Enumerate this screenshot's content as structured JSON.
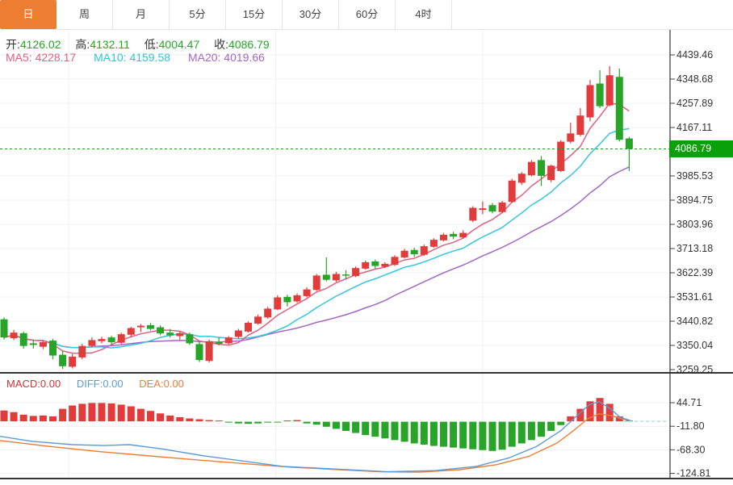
{
  "tabs": [
    {
      "label": "日",
      "active": true
    },
    {
      "label": "周",
      "active": false
    },
    {
      "label": "月",
      "active": false
    },
    {
      "label": "5分",
      "active": false
    },
    {
      "label": "15分",
      "active": false
    },
    {
      "label": "30分",
      "active": false
    },
    {
      "label": "60分",
      "active": false
    },
    {
      "label": "4时",
      "active": false
    }
  ],
  "legend": {
    "open_label": "开:",
    "open": "4126.02",
    "high_label": "高:",
    "high": "4132.11",
    "low_label": "低:",
    "low": "4004.47",
    "close_label": "收:",
    "close": "4086.79",
    "ma5_label": "MA5:",
    "ma5": "4228.17",
    "ma10_label": "MA10:",
    "ma10": "4159.58",
    "ma20_label": "MA20:",
    "ma20": "4019.66"
  },
  "macd_legend": {
    "macd_label": "MACD:",
    "macd": "0.00",
    "diff_label": "DIFF:",
    "diff": "0.00",
    "dea_label": "DEA:",
    "dea": "0.00"
  },
  "colors": {
    "active_tab": "#ed7d31",
    "up_candle": "#e23b3b",
    "down_candle": "#28a428",
    "price_badge": "#0aa00a",
    "current_price_line": "#15a015",
    "ma5": "#e0607e",
    "ma10": "#33c6dc",
    "ma20": "#a466c4",
    "diff_line": "#5b9bd5",
    "dea_line": "#ed7d31",
    "ohlc_value": "#21a821"
  },
  "chart_data": {
    "type": "candlestick+macd",
    "main": {
      "type": "candlestick",
      "title": "Daily K-line",
      "y_ticks": [
        "4439.46",
        "4348.68",
        "4257.89",
        "4167.11",
        "3985.53",
        "3894.75",
        "3803.96",
        "3713.18",
        "3622.39",
        "3531.61",
        "3440.82",
        "3350.04",
        "3259.25"
      ],
      "ylim": [
        3259.25,
        4439.46
      ],
      "current_price": 4086.79,
      "current_price_label": "4086.79",
      "ma_periods": [
        5,
        10,
        20
      ],
      "candles": [
        [
          3448,
          3455,
          3372,
          3380
        ],
        [
          3377,
          3408,
          3370,
          3398
        ],
        [
          3396,
          3402,
          3338,
          3348
        ],
        [
          3358,
          3372,
          3338,
          3352
        ],
        [
          3345,
          3370,
          3336,
          3362
        ],
        [
          3368,
          3375,
          3298,
          3312
        ],
        [
          3315,
          3330,
          3262,
          3272
        ],
        [
          3270,
          3318,
          3264,
          3308
        ],
        [
          3305,
          3356,
          3298,
          3348
        ],
        [
          3348,
          3380,
          3342,
          3370
        ],
        [
          3366,
          3382,
          3358,
          3374
        ],
        [
          3380,
          3386,
          3352,
          3362
        ],
        [
          3360,
          3398,
          3355,
          3392
        ],
        [
          3390,
          3420,
          3382,
          3415
        ],
        [
          3418,
          3430,
          3400,
          3424
        ],
        [
          3426,
          3434,
          3406,
          3412
        ],
        [
          3418,
          3425,
          3388,
          3395
        ],
        [
          3398,
          3412,
          3380,
          3388
        ],
        [
          3385,
          3402,
          3372,
          3396
        ],
        [
          3392,
          3398,
          3352,
          3358
        ],
        [
          3355,
          3365,
          3288,
          3295
        ],
        [
          3292,
          3372,
          3286,
          3366
        ],
        [
          3363,
          3380,
          3350,
          3356
        ],
        [
          3358,
          3385,
          3352,
          3380
        ],
        [
          3382,
          3412,
          3376,
          3406
        ],
        [
          3402,
          3440,
          3398,
          3435
        ],
        [
          3432,
          3466,
          3428,
          3458
        ],
        [
          3455,
          3495,
          3450,
          3488
        ],
        [
          3485,
          3538,
          3482,
          3530
        ],
        [
          3532,
          3540,
          3496,
          3512
        ],
        [
          3515,
          3545,
          3510,
          3538
        ],
        [
          3535,
          3568,
          3530,
          3560
        ],
        [
          3558,
          3618,
          3554,
          3612
        ],
        [
          3615,
          3680,
          3590,
          3596
        ],
        [
          3594,
          3626,
          3588,
          3618
        ],
        [
          3616,
          3632,
          3600,
          3612
        ],
        [
          3610,
          3646,
          3606,
          3640
        ],
        [
          3638,
          3668,
          3634,
          3662
        ],
        [
          3665,
          3672,
          3638,
          3648
        ],
        [
          3645,
          3662,
          3640,
          3656
        ],
        [
          3652,
          3688,
          3648,
          3682
        ],
        [
          3680,
          3712,
          3676,
          3705
        ],
        [
          3708,
          3716,
          3682,
          3692
        ],
        [
          3690,
          3728,
          3686,
          3722
        ],
        [
          3720,
          3752,
          3716,
          3746
        ],
        [
          3744,
          3772,
          3740,
          3765
        ],
        [
          3768,
          3776,
          3748,
          3758
        ],
        [
          3755,
          3782,
          3750,
          3772
        ],
        [
          3818,
          3872,
          3812,
          3866
        ],
        [
          3858,
          3890,
          3842,
          3864
        ],
        [
          3876,
          3884,
          3845,
          3852
        ],
        [
          3850,
          3892,
          3846,
          3886
        ],
        [
          3888,
          3975,
          3884,
          3968
        ],
        [
          3960,
          4000,
          3952,
          3994
        ],
        [
          3988,
          4045,
          3984,
          4038
        ],
        [
          4045,
          4060,
          3948,
          3986
        ],
        [
          3970,
          4028,
          3962,
          4024
        ],
        [
          4004,
          4120,
          4000,
          4114
        ],
        [
          4114,
          4185,
          4108,
          4145
        ],
        [
          4140,
          4240,
          4134,
          4212
        ],
        [
          4205,
          4345,
          4190,
          4326
        ],
        [
          4332,
          4382,
          4240,
          4247
        ],
        [
          4250,
          4397,
          4246,
          4363
        ],
        [
          4357,
          4388,
          4115,
          4121
        ],
        [
          4126,
          4132,
          4004,
          4087
        ]
      ]
    },
    "macd": {
      "type": "bar+line",
      "y_ticks": [
        "44.71",
        "-11.80",
        "-68.30",
        "-124.81"
      ],
      "histogram": [
        26,
        22,
        16,
        13,
        14,
        12,
        30,
        38,
        42,
        44,
        44,
        43,
        40,
        36,
        30,
        25,
        19,
        14,
        10,
        7,
        5,
        3,
        2,
        -2,
        -4,
        -5,
        -4,
        -2,
        -1,
        2,
        3,
        -4,
        -7,
        -12,
        -17,
        -22,
        -27,
        -32,
        -36,
        -40,
        -44,
        -48,
        -52,
        -55,
        -58,
        -60,
        -62,
        -64,
        -66,
        -68,
        -70,
        -67,
        -60,
        -52,
        -44,
        -36,
        -22,
        -8,
        12,
        30,
        48,
        56,
        42,
        12,
        1
      ],
      "diff_line": [
        [
          0,
          -36
        ],
        [
          40,
          -48
        ],
        [
          90,
          -56
        ],
        [
          130,
          -58
        ],
        [
          160,
          -56
        ],
        [
          200,
          -66
        ],
        [
          250,
          -82
        ],
        [
          300,
          -95
        ],
        [
          350,
          -108
        ],
        [
          420,
          -115
        ],
        [
          480,
          -121
        ],
        [
          540,
          -118
        ],
        [
          590,
          -108
        ],
        [
          630,
          -88
        ],
        [
          665,
          -60
        ],
        [
          695,
          -22
        ],
        [
          715,
          14
        ],
        [
          730,
          40
        ],
        [
          742,
          47
        ],
        [
          755,
          32
        ],
        [
          768,
          10
        ],
        [
          782,
          1
        ]
      ],
      "dea_line": [
        [
          0,
          -46
        ],
        [
          60,
          -60
        ],
        [
          120,
          -72
        ],
        [
          180,
          -82
        ],
        [
          240,
          -92
        ],
        [
          300,
          -101
        ],
        [
          360,
          -110
        ],
        [
          420,
          -116
        ],
        [
          470,
          -121
        ],
        [
          520,
          -122
        ],
        [
          570,
          -116
        ],
        [
          615,
          -104
        ],
        [
          655,
          -84
        ],
        [
          690,
          -52
        ],
        [
          712,
          -20
        ],
        [
          728,
          6
        ],
        [
          742,
          18
        ],
        [
          757,
          14
        ],
        [
          770,
          6
        ],
        [
          782,
          1
        ]
      ]
    }
  }
}
